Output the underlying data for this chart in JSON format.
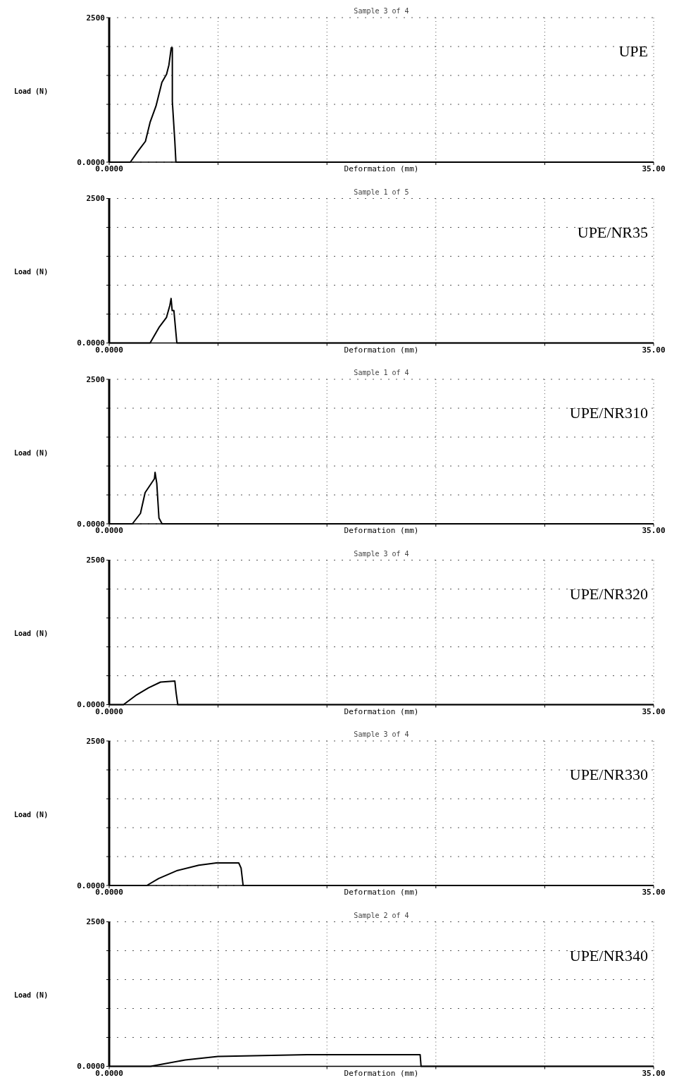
{
  "chart_data": [
    {
      "type": "line",
      "title": "Sample 3 of 4",
      "xlabel": "Deformation (mm)",
      "ylabel": "Load (N)",
      "annotations": [
        "UPE"
      ],
      "xlim": [
        0,
        35
      ],
      "ylim": [
        0,
        2500
      ],
      "xticks": [
        {
          "value": 0,
          "label": "0.0000"
        },
        {
          "value": 7,
          "label": null
        },
        {
          "value": 14,
          "label": null
        },
        {
          "value": 21,
          "label": null
        },
        {
          "value": 28,
          "label": null
        },
        {
          "value": 35,
          "label": "35.00"
        }
      ],
      "yticks": [
        {
          "value": 0,
          "label": "0.0000"
        },
        {
          "value": 500,
          "label": null
        },
        {
          "value": 1000,
          "label": null
        },
        {
          "value": 1500,
          "label": null
        },
        {
          "value": 2000,
          "label": null
        },
        {
          "value": 2500,
          "label": "2500"
        }
      ],
      "grid": true,
      "series": [
        {
          "color": "#000000",
          "x": [
            0,
            1.36,
            1.88,
            2.33,
            2.63,
            3.01,
            3.39,
            3.69,
            3.84,
            3.99,
            4.06,
            4.06,
            4.22,
            4.29,
            35
          ],
          "values": [
            0,
            0,
            200,
            360,
            690,
            970,
            1380,
            1520,
            1680,
            1980,
            1980,
            1050,
            360,
            0,
            0
          ]
        }
      ]
    },
    {
      "type": "line",
      "title": "Sample 1 of 5",
      "xlabel": "Deformation (mm)",
      "ylabel": "Load (N)",
      "annotations": [
        "UPE/NR35"
      ],
      "xlim": [
        0,
        35
      ],
      "ylim": [
        0,
        2500
      ],
      "xticks": [
        {
          "value": 0,
          "label": "0.0000"
        },
        {
          "value": 7,
          "label": null
        },
        {
          "value": 14,
          "label": null
        },
        {
          "value": 21,
          "label": null
        },
        {
          "value": 28,
          "label": null
        },
        {
          "value": 35,
          "label": "35.00"
        }
      ],
      "yticks": [
        {
          "value": 0,
          "label": "0.0000"
        },
        {
          "value": 500,
          "label": null
        },
        {
          "value": 1000,
          "label": null
        },
        {
          "value": 1500,
          "label": null
        },
        {
          "value": 2000,
          "label": null
        },
        {
          "value": 2500,
          "label": "2500"
        }
      ],
      "grid": true,
      "series": [
        {
          "color": "#000000",
          "x": [
            0,
            2.63,
            3.23,
            3.68,
            3.9,
            3.98,
            4.05,
            4.16,
            4.35,
            35
          ],
          "values": [
            0,
            0,
            280,
            440,
            650,
            770,
            560,
            560,
            0,
            0
          ]
        }
      ]
    },
    {
      "type": "line",
      "title": "Sample 1 of 4",
      "xlabel": "Deformation (mm)",
      "ylabel": "Load (N)",
      "annotations": [
        "UPE/NR310"
      ],
      "xlim": [
        0,
        35
      ],
      "ylim": [
        0,
        2500
      ],
      "xticks": [
        {
          "value": 0,
          "label": "0.0000"
        },
        {
          "value": 7,
          "label": null
        },
        {
          "value": 14,
          "label": null
        },
        {
          "value": 21,
          "label": null
        },
        {
          "value": 28,
          "label": null
        },
        {
          "value": 35,
          "label": "35.00"
        }
      ],
      "yticks": [
        {
          "value": 0,
          "label": "0.0000"
        },
        {
          "value": 500,
          "label": null
        },
        {
          "value": 1000,
          "label": null
        },
        {
          "value": 1500,
          "label": null
        },
        {
          "value": 2000,
          "label": null
        },
        {
          "value": 2500,
          "label": "2500"
        }
      ],
      "grid": true,
      "series": [
        {
          "color": "#000000",
          "x": [
            0,
            1.49,
            2.01,
            2.31,
            2.91,
            2.95,
            3.06,
            3.2,
            3.4,
            35
          ],
          "values": [
            0,
            0,
            180,
            540,
            780,
            890,
            700,
            100,
            0,
            0
          ]
        }
      ]
    },
    {
      "type": "line",
      "title": "Sample 3 of 4",
      "xlabel": "Deformation (mm)",
      "ylabel": "Load (N)",
      "annotations": [
        "UPE/NR320"
      ],
      "xlim": [
        0,
        35
      ],
      "ylim": [
        0,
        2500
      ],
      "xticks": [
        {
          "value": 0,
          "label": "0.0000"
        },
        {
          "value": 7,
          "label": null
        },
        {
          "value": 14,
          "label": null
        },
        {
          "value": 21,
          "label": null
        },
        {
          "value": 28,
          "label": null
        },
        {
          "value": 35,
          "label": "35.00"
        }
      ],
      "yticks": [
        {
          "value": 0,
          "label": "0.0000"
        },
        {
          "value": 500,
          "label": null
        },
        {
          "value": 1000,
          "label": null
        },
        {
          "value": 1500,
          "label": null
        },
        {
          "value": 2000,
          "label": null
        },
        {
          "value": 2500,
          "label": "2500"
        }
      ],
      "grid": true,
      "series": [
        {
          "color": "#000000",
          "x": [
            0,
            0.92,
            1.77,
            2.53,
            3.3,
            4.22,
            4.3,
            4.41,
            35
          ],
          "values": [
            0,
            0,
            170,
            290,
            390,
            410,
            210,
            0,
            0
          ]
        }
      ]
    },
    {
      "type": "line",
      "title": "Sample 3 of 4",
      "xlabel": "Deformation (mm)",
      "ylabel": "Load (N)",
      "annotations": [
        "UPE/NR330"
      ],
      "xlim": [
        0,
        35
      ],
      "ylim": [
        0,
        2500
      ],
      "xticks": [
        {
          "value": 0,
          "label": "0.0000"
        },
        {
          "value": 7,
          "label": null
        },
        {
          "value": 14,
          "label": null
        },
        {
          "value": 21,
          "label": null
        },
        {
          "value": 28,
          "label": null
        },
        {
          "value": 35,
          "label": "35.00"
        }
      ],
      "yticks": [
        {
          "value": 0,
          "label": "0.0000"
        },
        {
          "value": 500,
          "label": null
        },
        {
          "value": 1000,
          "label": null
        },
        {
          "value": 1500,
          "label": null
        },
        {
          "value": 2000,
          "label": null
        },
        {
          "value": 2500,
          "label": "2500"
        }
      ],
      "grid": true,
      "series": [
        {
          "color": "#000000",
          "x": [
            0,
            2.42,
            3.18,
            4.39,
            5.76,
            6.89,
            8.33,
            8.48,
            8.61,
            35
          ],
          "values": [
            0,
            0,
            120,
            260,
            350,
            390,
            390,
            300,
            0,
            0
          ]
        }
      ]
    },
    {
      "type": "line",
      "title": "Sample 2 of 4",
      "xlabel": "Deformation (mm)",
      "ylabel": "Load (N)",
      "annotations": [
        "UPE/NR340"
      ],
      "xlim": [
        0,
        35
      ],
      "ylim": [
        0,
        2500
      ],
      "xticks": [
        {
          "value": 0,
          "label": "0.0000"
        },
        {
          "value": 7,
          "label": null
        },
        {
          "value": 14,
          "label": null
        },
        {
          "value": 21,
          "label": null
        },
        {
          "value": 28,
          "label": null
        },
        {
          "value": 35,
          "label": "35.00"
        }
      ],
      "yticks": [
        {
          "value": 0,
          "label": "0.0000"
        },
        {
          "value": 500,
          "label": null
        },
        {
          "value": 1000,
          "label": null
        },
        {
          "value": 1500,
          "label": null
        },
        {
          "value": 2000,
          "label": null
        },
        {
          "value": 2500,
          "label": "2500"
        }
      ],
      "grid": true,
      "series": [
        {
          "color": "#000000",
          "x": [
            0,
            2.66,
            4.89,
            6.99,
            12.72,
            19.99,
            20.05,
            35
          ],
          "values": [
            0,
            0,
            110,
            170,
            200,
            200,
            0,
            0
          ]
        }
      ]
    }
  ]
}
